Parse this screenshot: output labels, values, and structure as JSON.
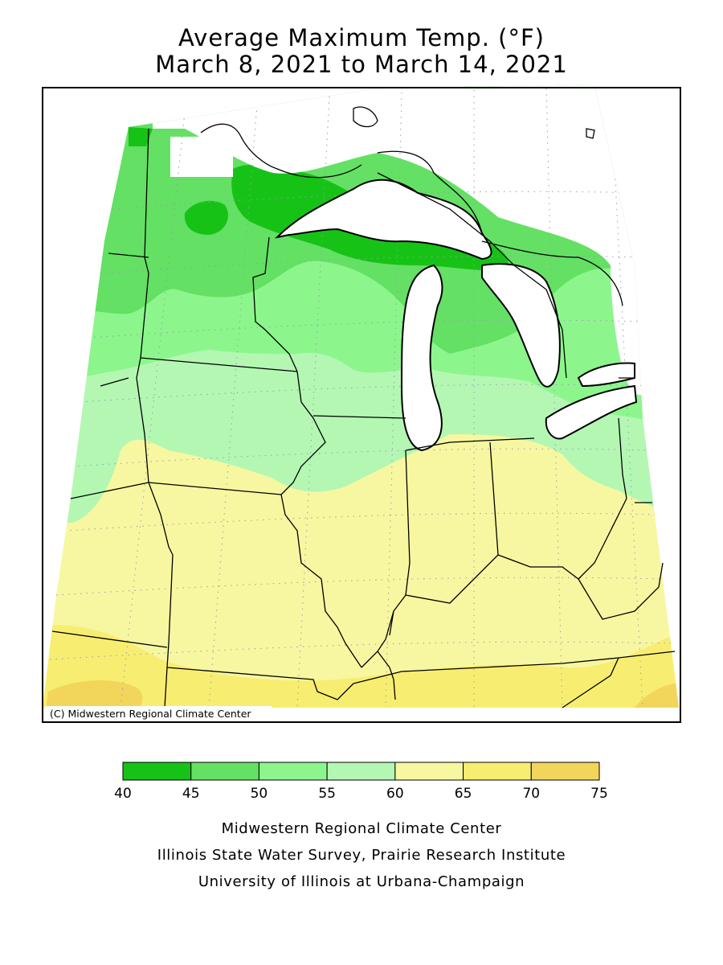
{
  "title": {
    "line1": "Average Maximum Temp. (°F)",
    "line2": "March 8, 2021 to March 14, 2021"
  },
  "map": {
    "copyright": "(C) Midwestern Regional Climate Center",
    "fill_color_background": "#ffffff",
    "lake_color": "#ffffff"
  },
  "legend": {
    "ticks": [
      "40",
      "45",
      "50",
      "55",
      "60",
      "65",
      "70",
      "75"
    ],
    "bins": [
      {
        "range": "40-45",
        "color": "#17c217"
      },
      {
        "range": "45-50",
        "color": "#64e064"
      },
      {
        "range": "50-55",
        "color": "#8cf68c"
      },
      {
        "range": "55-60",
        "color": "#b3f7b3"
      },
      {
        "range": "60-65",
        "color": "#f7f7a1"
      },
      {
        "range": "65-70",
        "color": "#f7ee71"
      },
      {
        "range": "70-75",
        "color": "#f2d65c"
      }
    ]
  },
  "credits": {
    "line1": "Midwestern Regional Climate Center",
    "line2": "Illinois State Water Survey, Prairie Research Institute",
    "line3": "University of Illinois at Urbana-Champaign"
  }
}
